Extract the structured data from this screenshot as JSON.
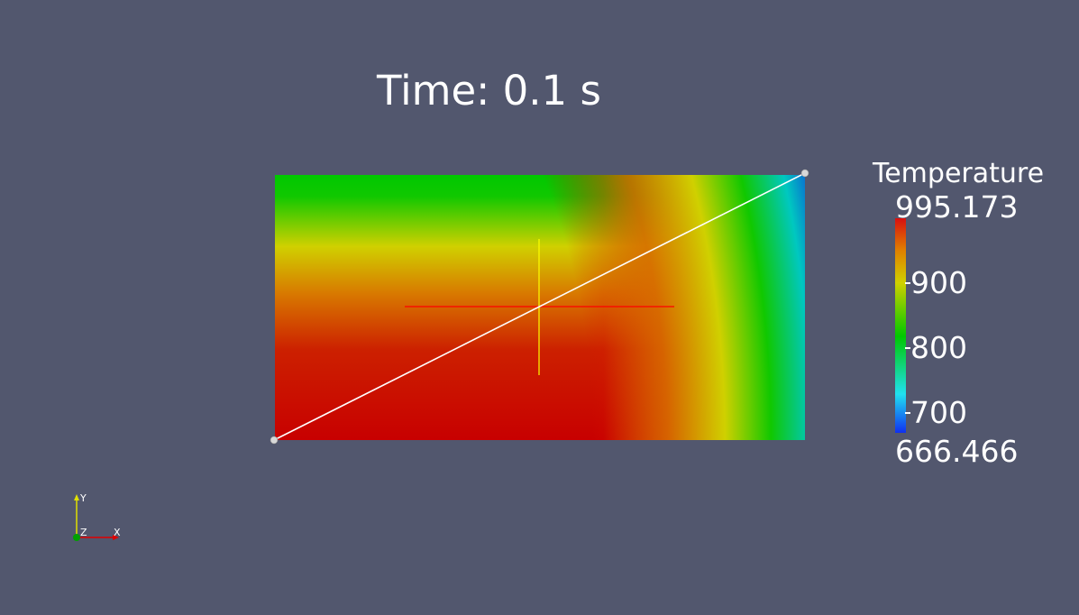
{
  "view": {
    "time_label": "Time: 0.1 s"
  },
  "legend": {
    "title": "Temperature",
    "max_label": "995.173",
    "min_label": "666.466",
    "range": [
      666.466,
      995.173
    ],
    "ticks": [
      {
        "value": 900,
        "label": "900"
      },
      {
        "value": 800,
        "label": "800"
      },
      {
        "value": 700,
        "label": "700"
      }
    ],
    "colormap": [
      "#1030f0",
      "#20e0f0",
      "#00c800",
      "#d0d000",
      "#e08000",
      "#d81010"
    ]
  },
  "orientation_axes": {
    "x_label": "X",
    "y_label": "Y",
    "z_label": "Z",
    "x_color": "#e00000",
    "y_color": "#e0e000",
    "z_color": "#00a000"
  },
  "colors": {
    "background": "#52576e",
    "line_widget": "#ffffff",
    "crosshair_x": "#ff0000",
    "crosshair_y": "#ffff00"
  }
}
